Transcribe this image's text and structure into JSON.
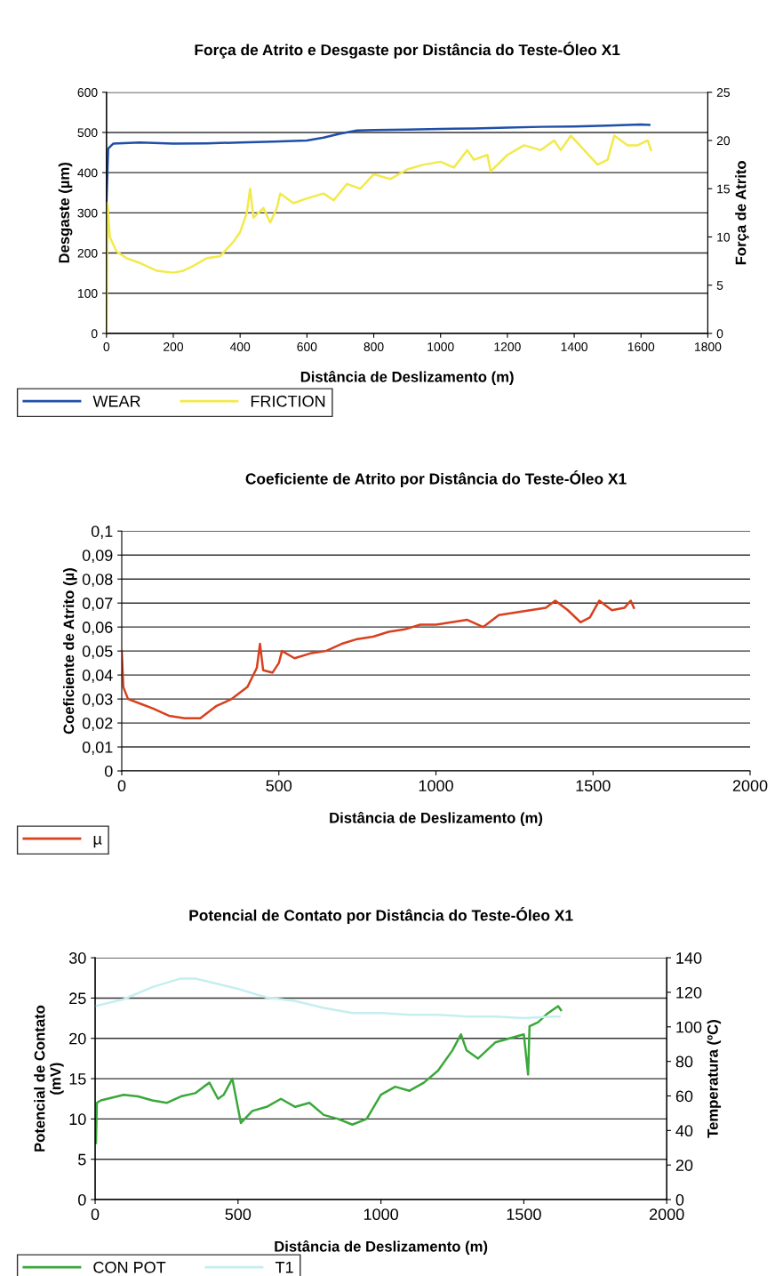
{
  "chart_data": [
    {
      "type": "line",
      "title": "Força de Atrito e Desgaste por Distância do Teste-Óleo X1",
      "xlabel": "Distância de Deslizamento (m)",
      "ylabel": "Desgaste (µm)",
      "y2label": "Força de Atrito",
      "xlim": [
        0,
        1800
      ],
      "xticks": [
        0,
        200,
        400,
        600,
        800,
        1000,
        1200,
        1400,
        1600,
        1800
      ],
      "ylim": [
        0,
        600
      ],
      "yticks": [
        0,
        100,
        200,
        300,
        400,
        500,
        600
      ],
      "y2lim": [
        0,
        25
      ],
      "y2ticks": [
        0,
        5,
        10,
        15,
        20,
        25
      ],
      "grid": "y",
      "legend": "bottom left",
      "series": [
        {
          "name": "WEAR",
          "color": "#1f4fa8",
          "x": [
            0,
            5,
            20,
            100,
            200,
            300,
            400,
            500,
            600,
            650,
            700,
            750,
            800,
            900,
            1000,
            1100,
            1200,
            1300,
            1400,
            1500,
            1600,
            1625
          ],
          "values": [
            330,
            460,
            472,
            475,
            472,
            473,
            475,
            477,
            480,
            487,
            497,
            505,
            506,
            507,
            509,
            510,
            512,
            514,
            515,
            517,
            520,
            519
          ]
        },
        {
          "name": "FRICTION",
          "color": "#f2ea4a",
          "axis": "y2",
          "x": [
            0,
            3,
            10,
            30,
            60,
            100,
            150,
            200,
            230,
            260,
            300,
            340,
            380,
            400,
            420,
            430,
            440,
            470,
            490,
            510,
            520,
            560,
            600,
            650,
            680,
            720,
            760,
            800,
            850,
            900,
            950,
            1000,
            1040,
            1080,
            1100,
            1140,
            1150,
            1200,
            1250,
            1300,
            1340,
            1360,
            1390,
            1430,
            1470,
            1500,
            1520,
            1560,
            1590,
            1620,
            1630
          ],
          "values": [
            0,
            13.5,
            10,
            8.5,
            7.8,
            7.3,
            6.5,
            6.3,
            6.5,
            7,
            7.8,
            8,
            9.5,
            10.5,
            12.5,
            15,
            12,
            13,
            11.5,
            13,
            14.5,
            13.5,
            14,
            14.5,
            13.8,
            15.5,
            15,
            16.5,
            16,
            17,
            17.5,
            17.8,
            17.2,
            19,
            18,
            18.5,
            16.8,
            18.5,
            19.5,
            19,
            20,
            19,
            20.5,
            19,
            17.5,
            18,
            20.5,
            19.5,
            19.5,
            20,
            19
          ]
        }
      ]
    },
    {
      "type": "line",
      "title": "Coeficiente de Atrito por Distância do Teste-Óleo X1",
      "xlabel": "Distância de Deslizamento (m)",
      "ylabel": "Coeficiente de Atrito (µ)",
      "xlim": [
        0,
        2000
      ],
      "xticks": [
        0,
        500,
        1000,
        1500,
        2000
      ],
      "ylim": [
        0,
        0.1
      ],
      "yticks": [
        0,
        {
          "value": 0.01,
          "label": "0,01"
        },
        {
          "value": 0.02,
          "label": "0,02"
        },
        {
          "value": 0.03,
          "label": "0,03"
        },
        {
          "value": 0.04,
          "label": "0,04"
        },
        {
          "value": 0.05,
          "label": "0,05"
        },
        {
          "value": 0.06,
          "label": "0,06"
        },
        {
          "value": 0.07,
          "label": "0,07"
        },
        {
          "value": 0.08,
          "label": "0,08"
        },
        {
          "value": 0.09,
          "label": "0,09"
        },
        {
          "value": 0.1,
          "label": "0,1"
        }
      ],
      "grid": "y",
      "legend": "bottom left",
      "series": [
        {
          "name": "µ",
          "color": "#d8401e",
          "x": [
            0,
            5,
            20,
            60,
            100,
            150,
            200,
            250,
            300,
            350,
            400,
            430,
            440,
            450,
            480,
            500,
            510,
            550,
            600,
            650,
            700,
            750,
            800,
            850,
            900,
            950,
            1000,
            1050,
            1100,
            1150,
            1200,
            1250,
            1300,
            1350,
            1380,
            1420,
            1460,
            1490,
            1520,
            1560,
            1600,
            1620,
            1630
          ],
          "values": [
            0.05,
            0.035,
            0.03,
            0.028,
            0.026,
            0.023,
            0.022,
            0.022,
            0.027,
            0.03,
            0.035,
            0.043,
            0.053,
            0.042,
            0.041,
            0.045,
            0.05,
            0.047,
            0.049,
            0.05,
            0.053,
            0.055,
            0.056,
            0.058,
            0.059,
            0.061,
            0.061,
            0.062,
            0.063,
            0.06,
            0.065,
            0.066,
            0.067,
            0.068,
            0.071,
            0.067,
            0.062,
            0.064,
            0.071,
            0.067,
            0.068,
            0.071,
            0.068
          ]
        }
      ]
    },
    {
      "type": "line",
      "title": "Potencial de Contato por Distância do Teste-Óleo X1",
      "xlabel": "Distância de Deslizamento (m)",
      "ylabel": "Potencial de Contato\n(mV)",
      "y2label": "Temperatura (ºC)",
      "xlim": [
        0,
        2000
      ],
      "xticks": [
        0,
        500,
        1000,
        1500,
        2000
      ],
      "ylim": [
        0,
        30
      ],
      "yticks": [
        0,
        5,
        10,
        15,
        20,
        25,
        30
      ],
      "y2lim": [
        0,
        140
      ],
      "y2ticks": [
        0,
        20,
        40,
        60,
        80,
        100,
        120,
        140
      ],
      "grid": "y",
      "legend": "bottom left",
      "series": [
        {
          "name": "CON POT",
          "color": "#3aa83a",
          "x": [
            3,
            6,
            20,
            100,
            150,
            200,
            250,
            300,
            350,
            380,
            400,
            430,
            450,
            480,
            510,
            550,
            600,
            650,
            700,
            750,
            800,
            850,
            900,
            950,
            1000,
            1050,
            1100,
            1150,
            1200,
            1250,
            1280,
            1300,
            1340,
            1400,
            1450,
            1500,
            1515,
            1520,
            1550,
            1580,
            1620,
            1630
          ],
          "values": [
            7,
            12,
            12.3,
            13,
            12.8,
            12.3,
            12,
            12.8,
            13.2,
            14,
            14.5,
            12.5,
            13,
            15,
            9.5,
            11,
            11.5,
            12.5,
            11.5,
            12,
            10.5,
            10,
            9.3,
            10,
            13,
            14,
            13.5,
            14.5,
            16,
            18.5,
            20.5,
            18.5,
            17.5,
            19.5,
            20,
            20.5,
            15.5,
            21.5,
            22,
            23,
            24,
            23.5
          ]
        },
        {
          "name": "T1",
          "color": "#c6eef0",
          "axis": "y2",
          "x": [
            0,
            100,
            200,
            300,
            350,
            400,
            500,
            600,
            700,
            800,
            900,
            1000,
            1100,
            1200,
            1300,
            1400,
            1500,
            1600,
            1625
          ],
          "values": [
            112,
            116,
            123,
            128,
            128,
            126,
            122,
            117,
            115,
            111,
            108,
            108,
            107,
            107,
            106,
            106,
            105,
            106,
            106
          ]
        }
      ]
    }
  ]
}
